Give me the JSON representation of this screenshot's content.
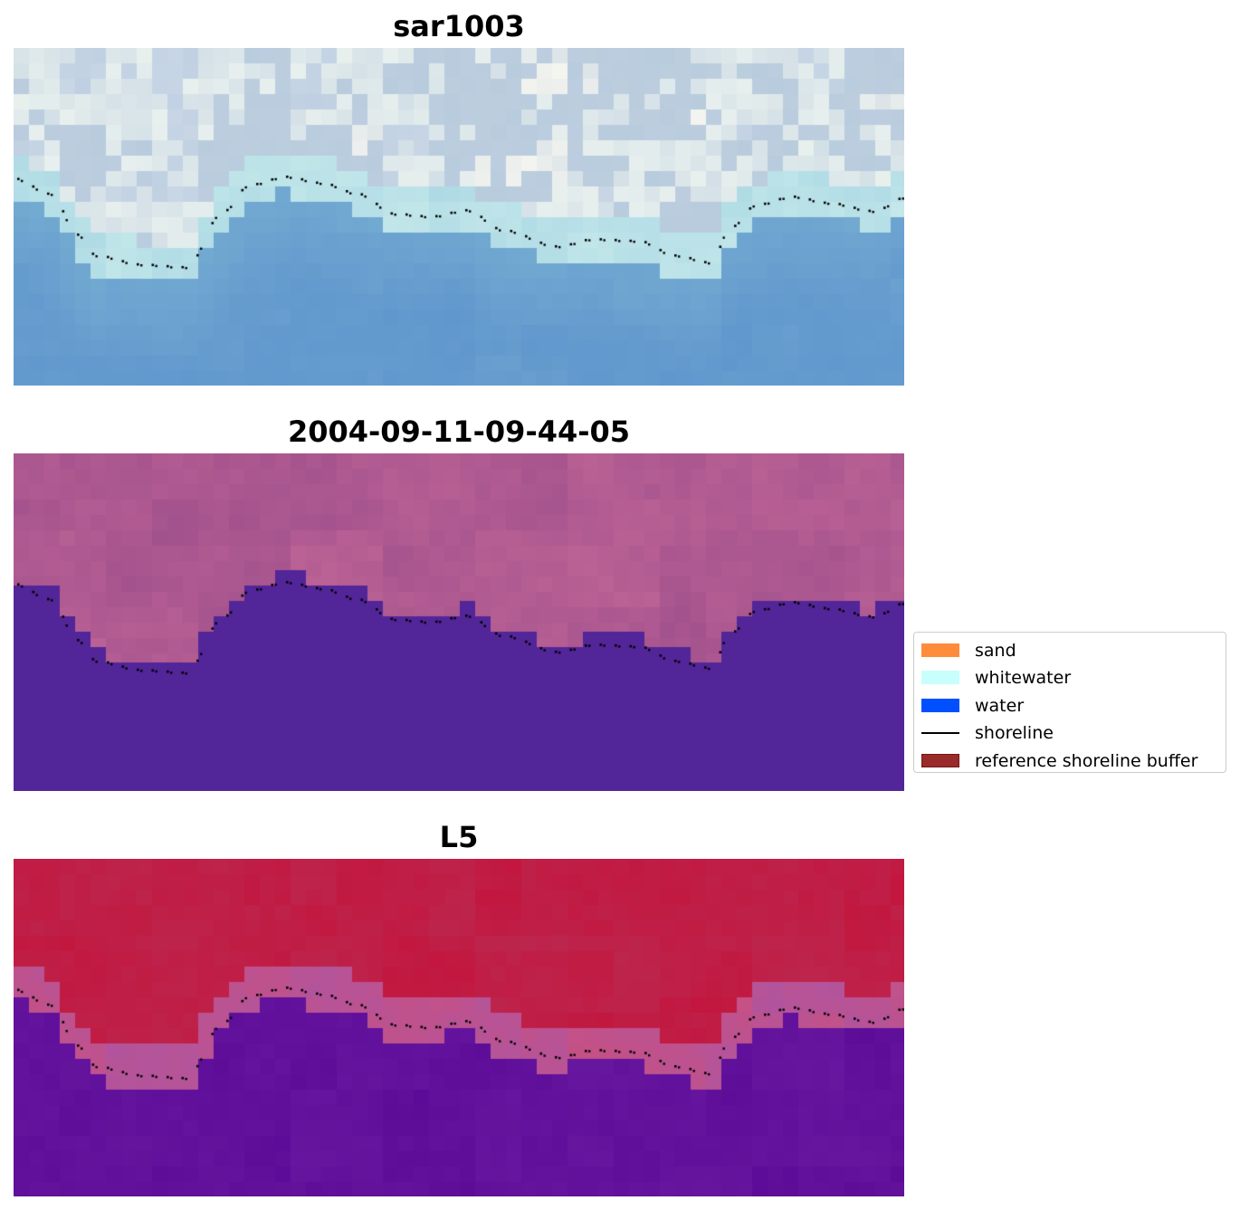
{
  "panels": [
    {
      "title": "sar1003",
      "style": "rgb"
    },
    {
      "title": "2004-09-11-09-44-05",
      "style": "classified"
    },
    {
      "title": "L5",
      "style": "index"
    }
  ],
  "legend": {
    "items": [
      {
        "label": "sand",
        "color": "#ff8c3a",
        "kind": "patch"
      },
      {
        "label": "whitewater",
        "color": "#c8fffc",
        "kind": "patch"
      },
      {
        "label": "water",
        "color": "#0050ff",
        "kind": "patch"
      },
      {
        "label": "shoreline",
        "color": "#000000",
        "kind": "line"
      },
      {
        "label": "reference shoreline buffer",
        "color": "#9a2b2b",
        "kind": "patch"
      }
    ]
  }
}
